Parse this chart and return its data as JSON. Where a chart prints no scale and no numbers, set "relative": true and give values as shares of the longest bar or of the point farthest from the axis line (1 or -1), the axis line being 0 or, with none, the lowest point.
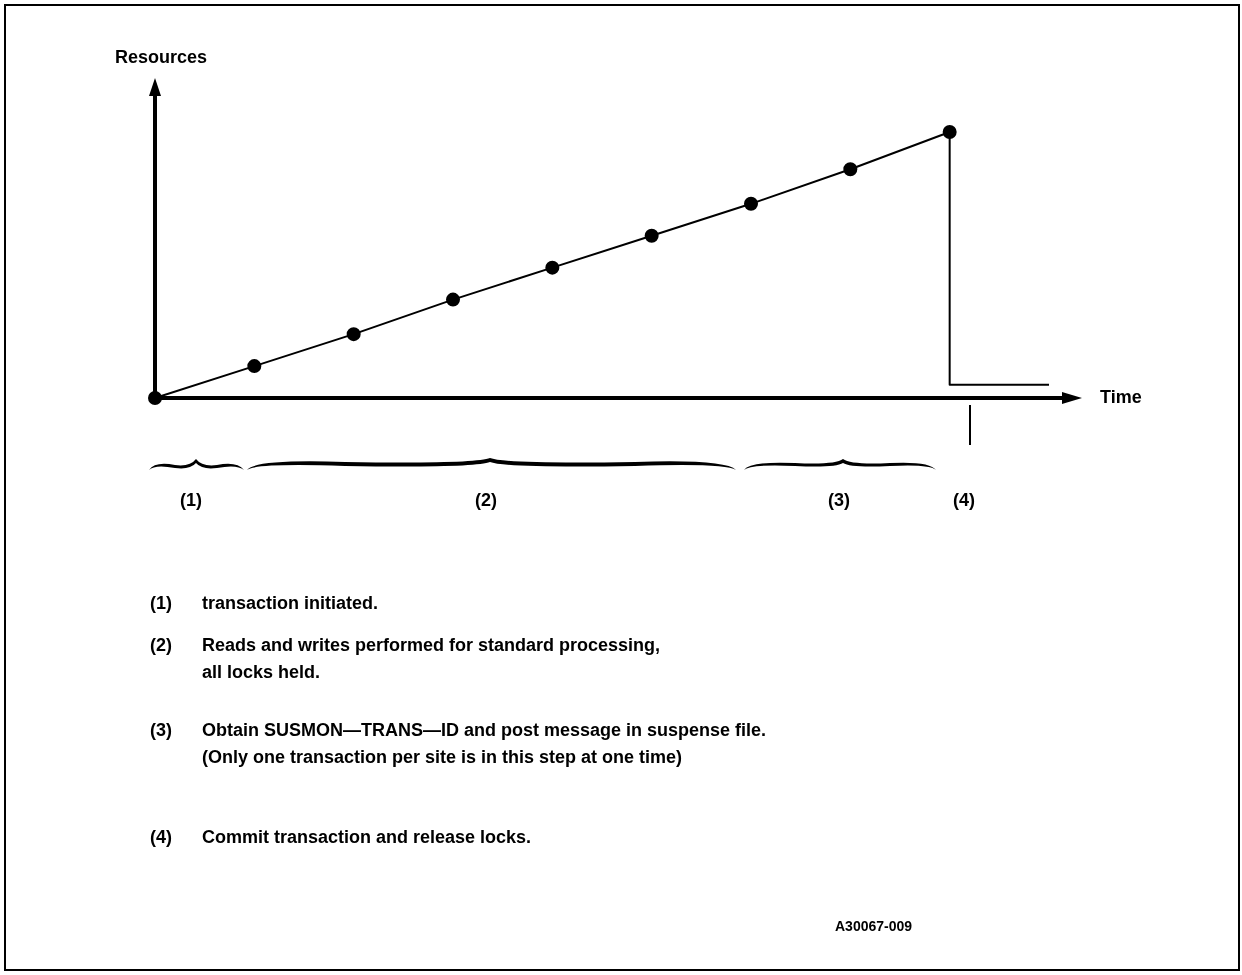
{
  "chart_data": {
    "type": "line",
    "relative": true,
    "xlabel": "Time",
    "ylabel": "Resources",
    "categories": [
      null,
      null,
      null,
      null,
      null,
      null,
      null,
      null,
      null,
      null
    ],
    "series": [
      {
        "color": "#000000",
        "marker": "circle",
        "values": [
          0,
          0.12,
          0.24,
          0.37,
          0.49,
          0.61,
          0.73,
          0.86,
          1.0,
          null
        ]
      },
      {
        "type": "step",
        "color": "#000000",
        "marker": "none",
        "values": [
          null,
          null,
          null,
          null,
          null,
          null,
          null,
          null,
          1.0,
          0.05
        ]
      }
    ],
    "annotations": [
      "(1)",
      "(2)",
      "(3)",
      "(4)",
      "(1) transaction initiated.",
      "(2) Reads and writes performed for standard processing,\nall locks held.",
      "(3) Obtain SUSMON—TRANS—ID and post message in suspense file.\n(Only one transaction per site is in this step at one time)",
      "(4) Commit transaction and release locks.",
      "A30067-009"
    ]
  }
}
